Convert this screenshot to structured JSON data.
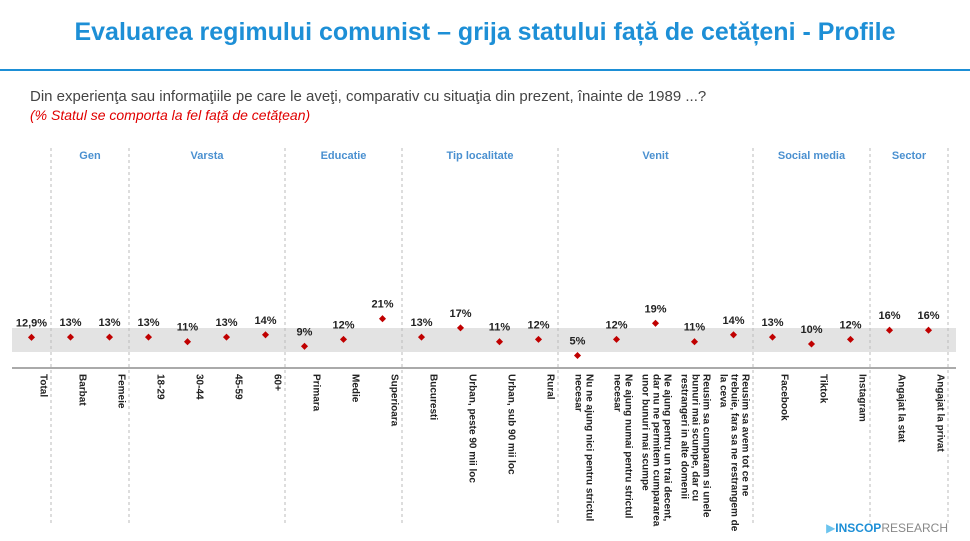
{
  "header": {
    "title": "Evaluarea regimului comunist – grija statului față de cetățeni - Profile",
    "question": "Din experienţa sau informaţiile pe care le aveţi, comparativ cu situaţia din prezent, înainte de 1989 ...?",
    "note": "(% Statul se comporta la fel față de cetățean)"
  },
  "chart_data": {
    "type": "dot",
    "categories": [
      "Total",
      "Barbat",
      "Femeie",
      "18-29",
      "30-44",
      "45-59",
      "60+",
      "Primara",
      "Medie",
      "Superioara",
      "Bucuresti",
      "Urban, peste 90 mii loc",
      "Urban, sub 90 mii loc",
      "Rural",
      "Nu ne ajung nici pentru strictul necesar",
      "Ne ajung numai pentru strictul necesar",
      "Ne ajung pentru un trai decent, dar nu ne permitem cumpararea unor bunuri mai scumpe",
      "Reusim sa cumparam si unele bunuri mai scumpe, dar cu restrangeri in alte domenii",
      "Reusim sa avem tot ce ne trebuie, fara sa ne restrangem de la ceva",
      "Facebook",
      "Tiktok",
      "Instagram",
      "Angajat la stat",
      "Angajat la privat"
    ],
    "values": [
      12.9,
      13,
      13,
      13,
      11,
      13,
      14,
      9,
      12,
      21,
      13,
      17,
      11,
      12,
      5,
      12,
      19,
      11,
      14,
      13,
      10,
      12,
      16,
      16
    ],
    "value_labels": [
      "12,9%",
      "13%",
      "13%",
      "13%",
      "11%",
      "13%",
      "14%",
      "9%",
      "12%",
      "21%",
      "13%",
      "17%",
      "11%",
      "12%",
      "5%",
      "12%",
      "19%",
      "11%",
      "14%",
      "13%",
      "10%",
      "12%",
      "16%",
      "16%"
    ],
    "groups": [
      {
        "name": "Gen",
        "size": 2
      },
      {
        "name": "Varsta",
        "size": 4
      },
      {
        "name": "Educatie",
        "size": 3
      },
      {
        "name": "Tip localitate",
        "size": 4
      },
      {
        "name": "Venit",
        "size": 5
      },
      {
        "name": "Social media",
        "size": 3
      },
      {
        "name": "Sector",
        "size": 2
      }
    ],
    "color": "#c00000",
    "ylim": [
      0,
      30
    ]
  },
  "logo": {
    "bold": "INSCOP",
    "light": "RESEARCH"
  }
}
